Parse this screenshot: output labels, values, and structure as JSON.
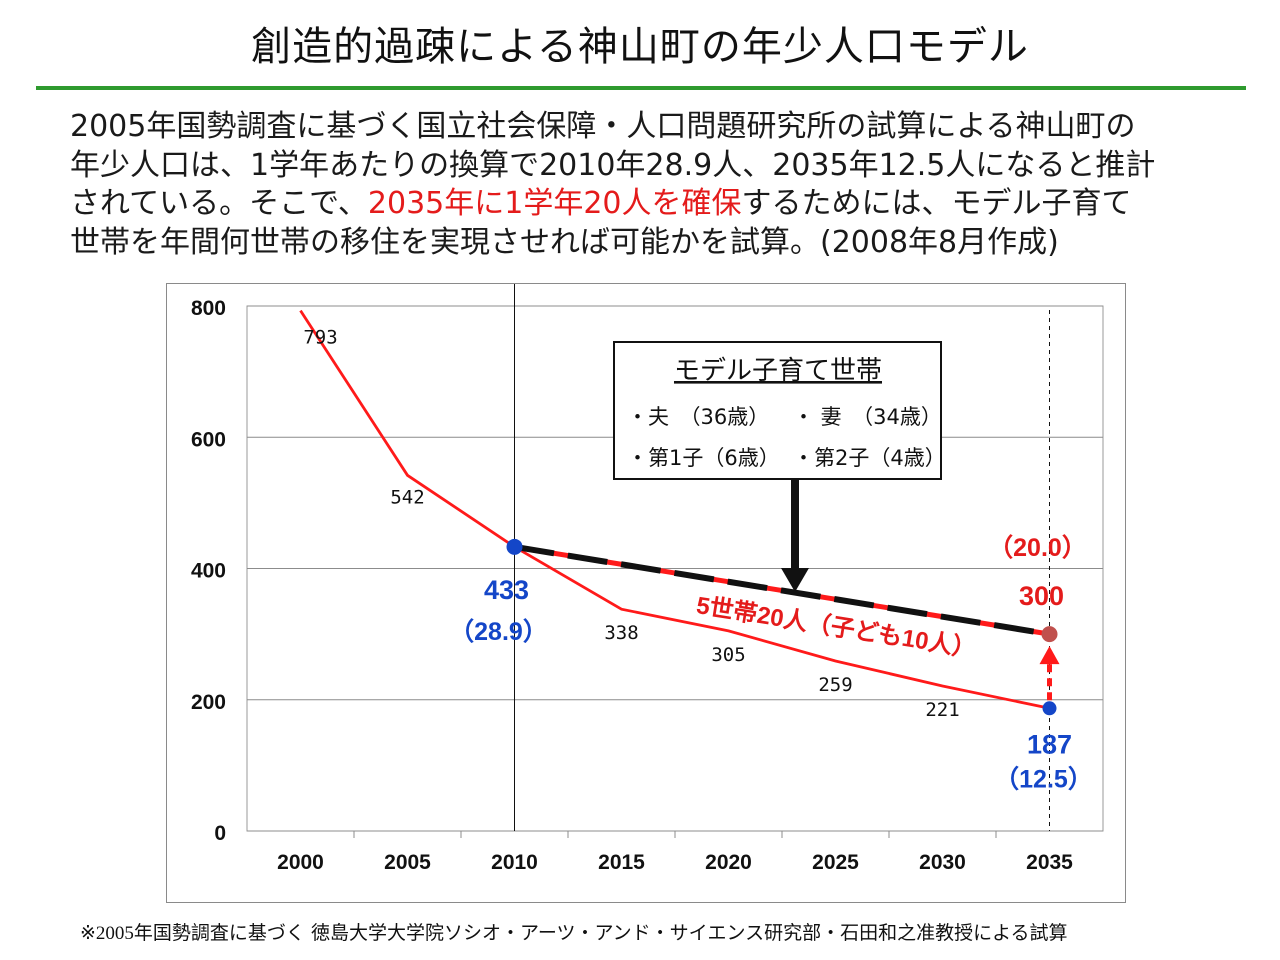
{
  "header": {
    "title": "創造的過疎による神山町の年少人口モデル"
  },
  "intro": {
    "line1": "2005年国勢調査に基づく国立社会保障・人口問題研究所の試算による神山町の",
    "line2": "年少人口は、1学年あたりの換算で2010年28.9人、2035年12.5人になると推計",
    "line3_pre": "されている。そこで、",
    "line3_highlight": "2035年に1学年20人を確保",
    "line3_post": "するためには、モデル子育て",
    "line4": "世帯を年間何世帯の移住を実現させれば可能かを試算。(2008年8月作成)"
  },
  "chart_data": {
    "type": "line",
    "categories": [
      "2000",
      "2005",
      "2010",
      "2015",
      "2020",
      "2025",
      "2030",
      "2035"
    ],
    "ylim": [
      0,
      800
    ],
    "yticks": [
      "0",
      "200",
      "400",
      "600",
      "800"
    ],
    "grid": true,
    "series": [
      {
        "values": [
          793,
          542,
          433,
          338,
          305,
          259,
          221,
          187
        ],
        "data_labels": [
          "793",
          "542",
          "433",
          "338",
          "305",
          "259",
          "221",
          "187"
        ],
        "color": "#ff1a1a"
      },
      {
        "x": [
          "2010",
          "2035"
        ],
        "values": [
          433,
          300
        ],
        "data_labels": [
          "433",
          "300"
        ],
        "color": "#111111",
        "dash_color": "#ff1a1a"
      }
    ],
    "highlight_points": [
      {
        "x": "2010",
        "value": 433,
        "label": "433",
        "sub_label": "（28.9）",
        "color": "#1446c8"
      },
      {
        "x": "2035",
        "value": 187,
        "label": "187",
        "sub_label": "（12.5）",
        "color": "#1446c8"
      },
      {
        "x": "2035",
        "value": 300,
        "label": "300",
        "sub_label": "（20.0）",
        "color": "#e0301a"
      }
    ],
    "vertical_lines": [
      {
        "x": "2010",
        "style": "solid"
      },
      {
        "x": "2035",
        "style": "dashed"
      }
    ],
    "annotations": {
      "model_box": {
        "title": "モデル子育て世帯",
        "row1_a": "・夫　（36歳）",
        "row1_b": "・ 妻　（34歳）",
        "row2_a": "・第1子（6歳）",
        "row2_b": "・第2子（4歳）"
      },
      "households_text": "5世帯20人（子ども10人）",
      "annotation_color": "#e41b1b"
    }
  },
  "footnote": {
    "mark": "※2005",
    "text": "年国勢調査に基づく 徳島大学大学院ソシオ・アーツ・アンド・サイエンス研究部・石田和之准教授による試算"
  }
}
